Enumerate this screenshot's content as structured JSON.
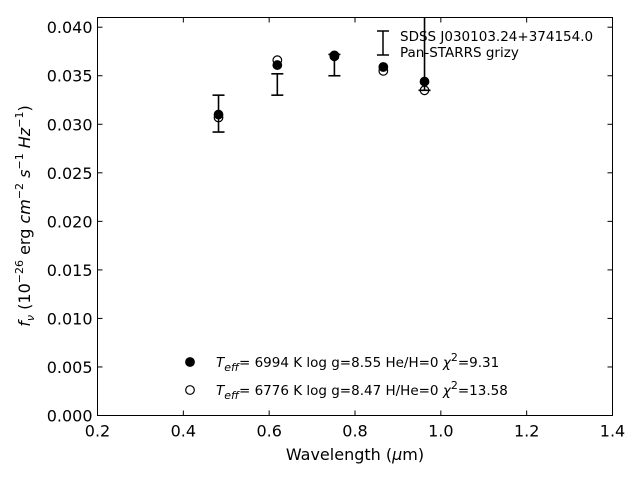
{
  "chart_data": {
    "type": "scatter",
    "xlabel": "Wavelength (μm)",
    "ylabel": "f_ν (10^-26 erg cm^-2 s^-1 Hz^-1)",
    "xlim": [
      0.2,
      1.4
    ],
    "ylim": [
      0.0,
      0.041
    ],
    "x_ticks": [
      0.2,
      0.4,
      0.6,
      0.8,
      1.0,
      1.2,
      1.4
    ],
    "x_tick_labels": [
      "0.2",
      "0.4",
      "0.6",
      "0.8",
      "1.0",
      "1.2",
      "1.4"
    ],
    "y_ticks": [
      0.0,
      0.005,
      0.01,
      0.015,
      0.02,
      0.025,
      0.03,
      0.035,
      0.04
    ],
    "y_tick_labels": [
      "0.000",
      "0.005",
      "0.010",
      "0.015",
      "0.020",
      "0.025",
      "0.030",
      "0.035",
      "0.040"
    ],
    "grid": false,
    "observed": {
      "legend_title": "SDSS J030103.24+374154.0",
      "legend_subtitle": "Pan-STARRS grizy",
      "legend_placement": "top-right",
      "points": [
        {
          "x": 0.482,
          "y": 0.0311,
          "err": 0.0019
        },
        {
          "x": 0.619,
          "y": 0.0341,
          "err": 0.0011
        },
        {
          "x": 0.752,
          "y": 0.0361,
          "err": 0.0011
        },
        {
          "x": 0.866,
          "y": 0.0358,
          "err": 0.0
        },
        {
          "x": 0.962,
          "y": 0.0375,
          "err": 0.004
        }
      ]
    },
    "series": [
      {
        "marker": "filled-circle",
        "label_prefix": "T",
        "label_sub": "eff",
        "label_rest": "=  6994 K  log g=8.55  He/H=0  χ",
        "label_sup": "2",
        "label_end": "=9.31",
        "values": [
          {
            "x": 0.482,
            "y": 0.031
          },
          {
            "x": 0.619,
            "y": 0.0361
          },
          {
            "x": 0.752,
            "y": 0.0371
          },
          {
            "x": 0.866,
            "y": 0.0359
          },
          {
            "x": 0.962,
            "y": 0.0344
          }
        ]
      },
      {
        "marker": "open-circle",
        "label_prefix": "T",
        "label_sub": "eff",
        "label_rest": "=  6776 K  log g=8.47  H/He=0  χ",
        "label_sup": "2",
        "label_end": "=13.58",
        "values": [
          {
            "x": 0.482,
            "y": 0.0307
          },
          {
            "x": 0.619,
            "y": 0.0366
          },
          {
            "x": 0.752,
            "y": 0.037
          },
          {
            "x": 0.866,
            "y": 0.0355
          },
          {
            "x": 0.962,
            "y": 0.0335
          }
        ]
      }
    ],
    "legend_models_placement": "bottom-center"
  }
}
